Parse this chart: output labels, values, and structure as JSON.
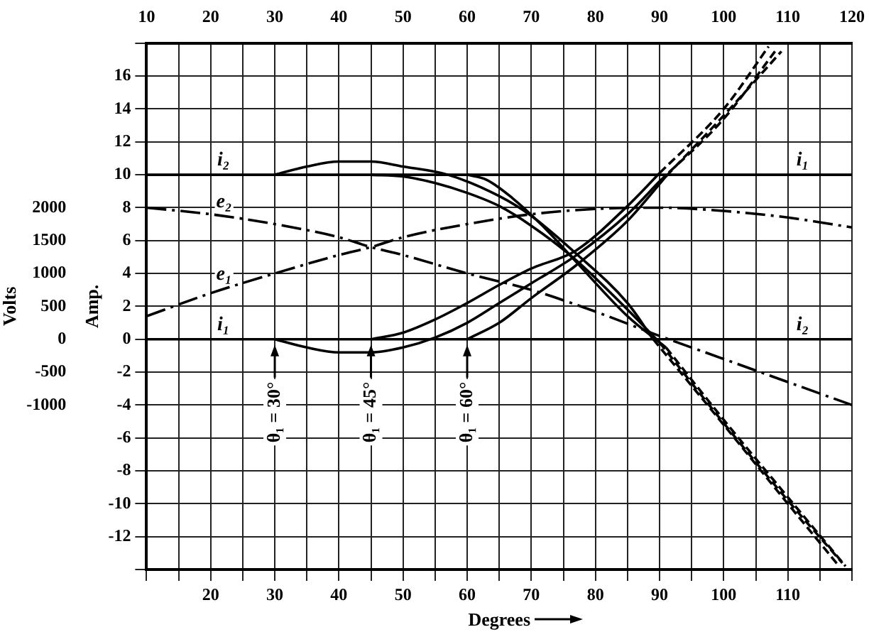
{
  "chart_data": {
    "type": "line",
    "xlabel": "Degrees",
    "ylabel": "Amp.",
    "y2label": "Volts",
    "xlim": [
      10,
      120
    ],
    "ylim": [
      -14,
      18
    ],
    "y2lim": [
      -3500,
      4500
    ],
    "xticks": [
      {
        "value": 10,
        "label": null
      },
      {
        "value": 15,
        "label": null
      },
      20,
      {
        "value": 25,
        "label": null
      },
      30,
      {
        "value": 35,
        "label": null
      },
      40,
      {
        "value": 45,
        "label": null
      },
      50,
      {
        "value": 55,
        "label": null
      },
      60,
      {
        "value": 65,
        "label": null
      },
      70,
      {
        "value": 75,
        "label": null
      },
      80,
      {
        "value": 85,
        "label": null
      },
      90,
      {
        "value": 95,
        "label": null
      },
      100,
      {
        "value": 105,
        "label": null
      },
      110,
      {
        "value": 115,
        "label": null
      },
      {
        "value": 120,
        "label": null
      }
    ],
    "x2lim": [
      10,
      120
    ],
    "x2ticks": [
      10,
      20,
      30,
      40,
      50,
      60,
      70,
      80,
      90,
      100,
      110,
      120
    ],
    "yticks": [
      {
        "value": -14,
        "label": null
      },
      -12,
      -10,
      -8,
      -6,
      -4,
      -2,
      0,
      2,
      4,
      6,
      8,
      10,
      12,
      14,
      16,
      {
        "value": 18,
        "label": null
      }
    ],
    "y2ticks": [
      -1000,
      -500,
      0,
      500,
      1000,
      1500,
      2000
    ],
    "grid": true,
    "legend": false,
    "marker": "none",
    "series": [
      {
        "color": "#000000",
        "line_style": "solid",
        "x": [
          30,
          35,
          40,
          45,
          50,
          57,
          65,
          70,
          77,
          85,
          89
        ],
        "values": [
          10,
          10.5,
          10.8,
          10.8,
          10.5,
          10,
          8.7,
          7.5,
          5.2,
          2.2,
          0
        ]
      },
      {
        "color": "#000000",
        "line_style": "dashed",
        "x": [
          89,
          100,
          110,
          118
        ],
        "values": [
          0,
          -5.2,
          -10,
          -13.8
        ]
      },
      {
        "color": "#000000",
        "line_style": "solid",
        "x": [
          45,
          50,
          55,
          60,
          65,
          70,
          77,
          85,
          90
        ],
        "values": [
          10,
          9.9,
          9.5,
          8.9,
          8.1,
          6.9,
          4.8,
          1.8,
          -0.2
        ]
      },
      {
        "color": "#000000",
        "line_style": "dashed",
        "x": [
          90,
          100,
          110,
          118.5
        ],
        "values": [
          -0.2,
          -5.1,
          -9.8,
          -13.6
        ]
      },
      {
        "color": "#000000",
        "line_style": "solid",
        "x": [
          60,
          63,
          67,
          72,
          77,
          85,
          91
        ],
        "values": [
          10,
          9.7,
          8.6,
          6.8,
          4.7,
          1.4,
          -0.5
        ]
      },
      {
        "color": "#000000",
        "line_style": "dashed",
        "x": [
          91,
          100,
          110,
          119
        ],
        "values": [
          -0.5,
          -4.9,
          -9.6,
          -13.8
        ]
      },
      {
        "color": "#000000",
        "line_style": "solid",
        "x": [
          30,
          35,
          40,
          45,
          50,
          55,
          60,
          65,
          70,
          77,
          85,
          90
        ],
        "values": [
          0,
          -0.5,
          -0.8,
          -0.8,
          -0.5,
          0.1,
          1,
          2.2,
          3.4,
          5.1,
          7.6,
          9.6
        ]
      },
      {
        "color": "#000000",
        "line_style": "dashed",
        "x": [
          90,
          100,
          108
        ],
        "values": [
          9.6,
          13.4,
          17.5
        ]
      },
      {
        "color": "#000000",
        "line_style": "solid",
        "x": [
          45,
          50,
          55,
          60,
          65,
          70,
          77,
          85,
          90
        ],
        "values": [
          0,
          0.4,
          1.2,
          2.2,
          3.3,
          4.3,
          5.4,
          8.1,
          10.1
        ]
      },
      {
        "color": "#000000",
        "line_style": "dashed",
        "x": [
          90,
          100,
          107
        ],
        "values": [
          10.1,
          14,
          17.8
        ]
      },
      {
        "color": "#000000",
        "line_style": "solid",
        "x": [
          60,
          65,
          70,
          77,
          85,
          91
        ],
        "values": [
          0,
          1,
          2.5,
          4.5,
          7.2,
          9.9
        ]
      },
      {
        "color": "#000000",
        "line_style": "dashed",
        "x": [
          91,
          100,
          109
        ],
        "values": [
          9.9,
          13.6,
          17.5
        ]
      },
      {
        "name": "i₁",
        "color": "#000000",
        "line_style": "solid",
        "x": [
          10,
          120
        ],
        "values": [
          10,
          10
        ]
      },
      {
        "name": "i₂",
        "color": "#000000",
        "line_style": "solid",
        "x": [
          10,
          120
        ],
        "values": [
          0,
          0
        ]
      },
      {
        "name": "e₂",
        "color": "#000000",
        "line_style": "dashdot",
        "axis": "y2",
        "x": [
          10,
          20,
          30,
          40,
          45,
          50,
          60,
          70,
          80,
          90,
          100,
          110,
          120
        ],
        "values": [
          2000,
          1900,
          1750,
          1550,
          1400,
          1280,
          1000,
          750,
          420,
          50,
          -300,
          -650,
          -1000
        ]
      },
      {
        "name": "e₁",
        "color": "#000000",
        "line_style": "dashdot",
        "axis": "y2",
        "x": [
          10,
          20,
          30,
          40,
          45,
          50,
          60,
          70,
          80,
          90,
          100,
          110,
          120
        ],
        "values": [
          350,
          700,
          1000,
          1280,
          1400,
          1550,
          1750,
          1900,
          1980,
          2000,
          1950,
          1850,
          1700
        ]
      }
    ],
    "annotations": [
      {
        "text": "i₂",
        "x": 22,
        "y": 10
      },
      {
        "text": "i₁",
        "x": 22,
        "y": 0
      },
      {
        "text": "θ₁ = 30°",
        "x": 30,
        "y": 0
      },
      {
        "text": "θ₁ = 45°",
        "x": 45,
        "y": 0
      },
      {
        "text": "θ₁ = 60°",
        "x": 60,
        "y": 0
      }
    ]
  }
}
